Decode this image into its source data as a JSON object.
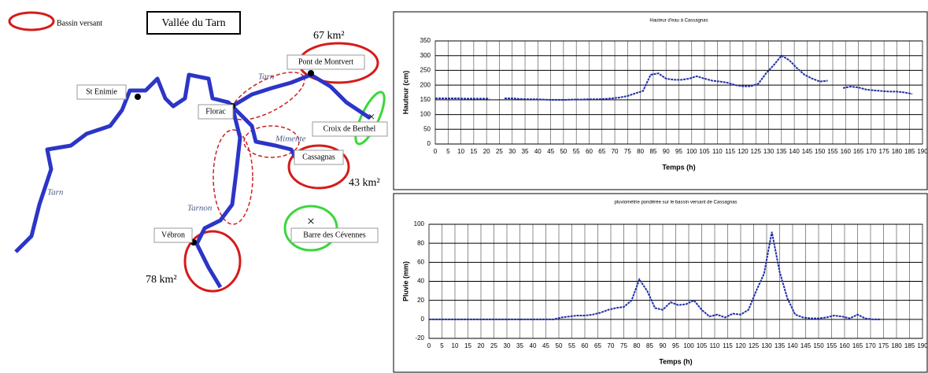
{
  "map": {
    "legend": "Bassin versant",
    "title": "Vallée du Tarn",
    "areas": [
      "67 km²",
      "43 km²",
      "78 km²"
    ],
    "places": [
      "St Enimie",
      "Pont de Montvert",
      "Florac",
      "Croix de Berthel",
      "Cassagnas",
      "Vébron",
      "Barre des Cévennes"
    ],
    "rivers": [
      "Tarn",
      "Tarn",
      "Mimente",
      "Tarnon"
    ]
  },
  "chart_data": [
    {
      "type": "line",
      "title": "Hauteur d'eau à Cassagnas",
      "xlabel": "Temps (h)",
      "ylabel": "Hauteur (cm)",
      "color": "#1f2fa8",
      "xlim": [
        0,
        190
      ],
      "ylim": [
        0,
        350
      ],
      "xticks": [
        0,
        5,
        10,
        15,
        20,
        25,
        30,
        35,
        40,
        45,
        50,
        55,
        60,
        65,
        70,
        75,
        80,
        85,
        90,
        95,
        100,
        105,
        110,
        115,
        120,
        125,
        130,
        135,
        140,
        145,
        150,
        155,
        160,
        165,
        170,
        175,
        180,
        185,
        190
      ],
      "yticks": [
        0,
        50,
        100,
        150,
        200,
        250,
        300,
        350
      ],
      "grid": true,
      "x": [
        0,
        3,
        6,
        9,
        12,
        15,
        18,
        21,
        24,
        27,
        30,
        33,
        36,
        39,
        42,
        45,
        48,
        51,
        54,
        57,
        60,
        63,
        66,
        69,
        72,
        75,
        78,
        81,
        84,
        87,
        90,
        93,
        96,
        99,
        102,
        105,
        108,
        111,
        114,
        117,
        120,
        123,
        126,
        129,
        132,
        135,
        138,
        141,
        144,
        147,
        150,
        153,
        156,
        159,
        162,
        165,
        168,
        171,
        174,
        177,
        180,
        183,
        186
      ],
      "values": [
        155,
        155,
        155,
        155,
        154,
        154,
        154,
        154,
        null,
        155,
        155,
        153,
        152,
        152,
        151,
        150,
        150,
        150,
        151,
        151,
        152,
        152,
        153,
        155,
        158,
        163,
        172,
        180,
        235,
        240,
        222,
        218,
        218,
        222,
        230,
        222,
        215,
        212,
        208,
        200,
        196,
        196,
        205,
        240,
        268,
        300,
        285,
        258,
        235,
        222,
        212,
        215,
        null,
        190,
        195,
        192,
        185,
        182,
        180,
        178,
        178,
        175,
        170
      ]
    },
    {
      "type": "line",
      "title": "pluviométrie pondérée sur le bassin versant de Cassagnas",
      "xlabel": "Temps (h)",
      "ylabel": "Pluvie (mm)",
      "color": "#1f2fa8",
      "xlim": [
        0,
        190
      ],
      "ylim": [
        -20,
        100
      ],
      "xticks": [
        0,
        5,
        10,
        15,
        20,
        25,
        30,
        35,
        40,
        45,
        50,
        55,
        60,
        65,
        70,
        75,
        80,
        85,
        90,
        95,
        100,
        105,
        110,
        115,
        120,
        125,
        130,
        135,
        140,
        145,
        150,
        155,
        160,
        165,
        170,
        175,
        180,
        185,
        190
      ],
      "yticks": [
        -20,
        0,
        20,
        40,
        60,
        80,
        100
      ],
      "grid": true,
      "x": [
        0,
        3,
        6,
        9,
        12,
        15,
        18,
        21,
        24,
        27,
        30,
        33,
        36,
        39,
        42,
        45,
        48,
        51,
        54,
        57,
        60,
        63,
        66,
        69,
        72,
        75,
        78,
        81,
        84,
        87,
        90,
        93,
        96,
        99,
        102,
        105,
        108,
        111,
        114,
        117,
        120,
        123,
        126,
        129,
        132,
        135,
        138,
        141,
        144,
        147,
        150,
        153,
        156,
        159,
        162,
        165,
        168,
        171,
        174
      ],
      "values": [
        0,
        0,
        0,
        0,
        0,
        0,
        0,
        0,
        0,
        0,
        0,
        0,
        0,
        0,
        0,
        0,
        0,
        2,
        3,
        4,
        4,
        5,
        7,
        10,
        12,
        13,
        20,
        42,
        30,
        12,
        10,
        18,
        15,
        16,
        20,
        10,
        3,
        5,
        2,
        6,
        5,
        10,
        30,
        48,
        92,
        50,
        22,
        5,
        2,
        1,
        1,
        2,
        4,
        3,
        1,
        5,
        1,
        0,
        0
      ]
    }
  ]
}
